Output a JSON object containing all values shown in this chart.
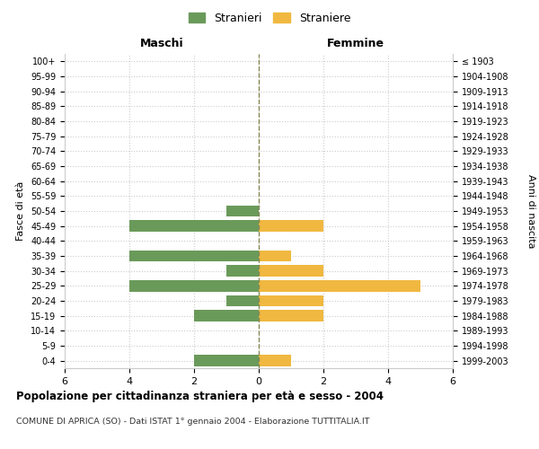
{
  "age_groups": [
    "0-4",
    "5-9",
    "10-14",
    "15-19",
    "20-24",
    "25-29",
    "30-34",
    "35-39",
    "40-44",
    "45-49",
    "50-54",
    "55-59",
    "60-64",
    "65-69",
    "70-74",
    "75-79",
    "80-84",
    "85-89",
    "90-94",
    "95-99",
    "100+"
  ],
  "birth_years": [
    "1999-2003",
    "1994-1998",
    "1989-1993",
    "1984-1988",
    "1979-1983",
    "1974-1978",
    "1969-1973",
    "1964-1968",
    "1959-1963",
    "1954-1958",
    "1949-1953",
    "1944-1948",
    "1939-1943",
    "1934-1938",
    "1929-1933",
    "1924-1928",
    "1919-1923",
    "1914-1918",
    "1909-1913",
    "1904-1908",
    "≤ 1903"
  ],
  "maschi": [
    2,
    0,
    0,
    2,
    1,
    4,
    1,
    4,
    0,
    4,
    1,
    0,
    0,
    0,
    0,
    0,
    0,
    0,
    0,
    0,
    0
  ],
  "femmine": [
    1,
    0,
    0,
    2,
    2,
    5,
    2,
    1,
    0,
    2,
    0,
    0,
    0,
    0,
    0,
    0,
    0,
    0,
    0,
    0,
    0
  ],
  "color_maschi": "#6a9a5a",
  "color_femmine": "#f0b840",
  "title": "Popolazione per cittadinanza straniera per età e sesso - 2004",
  "subtitle": "COMUNE DI APRICA (SO) - Dati ISTAT 1° gennaio 2004 - Elaborazione TUTTITALIA.IT",
  "xlabel_left": "Maschi",
  "xlabel_right": "Femmine",
  "ylabel_left": "Fasce di età",
  "ylabel_right": "Anni di nascita",
  "legend_maschi": "Stranieri",
  "legend_femmine": "Straniere",
  "xlim": 6,
  "background_color": "#ffffff",
  "grid_color": "#cccccc"
}
